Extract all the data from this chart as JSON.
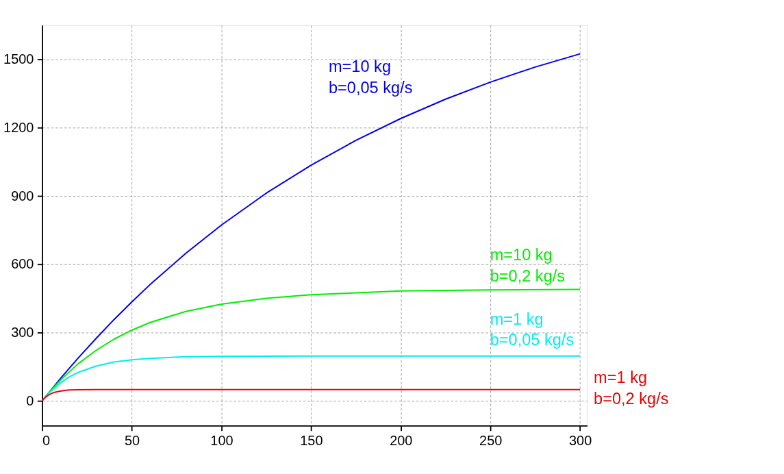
{
  "chart_data": {
    "type": "line",
    "xlim": [
      0,
      304
    ],
    "xticks": [
      0,
      50,
      100,
      150,
      200,
      250,
      300
    ],
    "ylim": [
      -110,
      1650
    ],
    "yticks": [
      0,
      300,
      600,
      900,
      1200,
      1500
    ],
    "grid": true,
    "marker": "none",
    "line_style": "solid",
    "series": [
      {
        "name": "m=10 kg\nb=0,05 kg/s",
        "color": "#0000ee",
        "x": [
          0,
          10,
          20,
          30,
          40,
          50,
          60,
          80,
          100,
          125,
          150,
          175,
          200,
          225,
          250,
          275,
          300
        ],
        "values": [
          0,
          96,
          187,
          273,
          356,
          434,
          509,
          647,
          772,
          912,
          1035,
          1144,
          1240,
          1325,
          1400,
          1466,
          1524
        ]
      },
      {
        "name": "m=10 kg\nb=0,2 kg/s",
        "color": "#00ee00",
        "x": [
          0,
          5,
          10,
          20,
          30,
          40,
          50,
          60,
          80,
          100,
          125,
          150,
          200,
          250,
          300
        ],
        "values": [
          0,
          47,
          89,
          162,
          221,
          270,
          310,
          343,
          392,
          424,
          450,
          466,
          482,
          487,
          489
        ]
      },
      {
        "name": "m=1 kg\nb=0,05 kg/s",
        "color": "#00eeee",
        "x": [
          0,
          2,
          5,
          10,
          15,
          20,
          30,
          40,
          50,
          60,
          80,
          100,
          150,
          200,
          300
        ],
        "values": [
          0,
          19,
          43,
          77,
          104,
          124,
          152,
          170,
          180,
          186,
          193,
          195,
          196,
          196,
          196
        ]
      },
      {
        "name": "m=1 kg\nb=0,2 kg/s",
        "color": "#ee0000",
        "x": [
          0,
          1,
          2,
          3,
          5,
          7,
          10,
          15,
          20,
          30,
          50,
          100,
          300
        ],
        "values": [
          0,
          9,
          16,
          22,
          31,
          37,
          42,
          47,
          48,
          49,
          49,
          49,
          49
        ]
      }
    ]
  }
}
